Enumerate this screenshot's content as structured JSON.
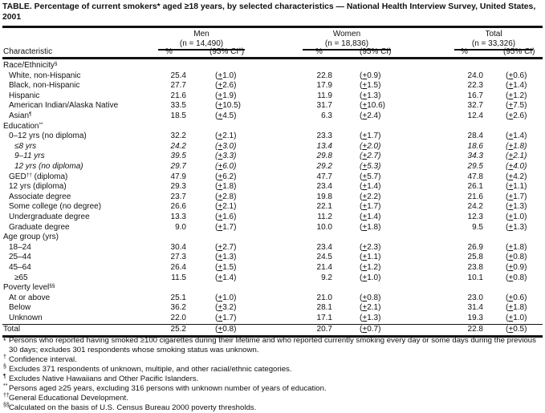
{
  "title": "TABLE. Percentage of current smokers* aged ≥18 years, by selected characteristics — National Health Interview Survey, United States, 2001",
  "columns": {
    "characteristic": "Characteristic",
    "groups": [
      {
        "name": "Men",
        "n": "(n = 14,490)",
        "pct": "%",
        "ci": "(95% CI",
        "ci_sup": "†",
        "ci_close": ")"
      },
      {
        "name": "Women",
        "n": "(n = 18,836)",
        "pct": "%",
        "ci": "(95% CI",
        "ci_sup": "",
        "ci_close": ")"
      },
      {
        "name": "Total",
        "n": "(n = 33,326)",
        "pct": "%",
        "ci": "(95% CI",
        "ci_sup": "",
        "ci_close": ")"
      }
    ]
  },
  "rows": [
    {
      "label": "Race/Ethnicity",
      "sup": "§",
      "type": "section"
    },
    {
      "label": "White, non-Hispanic",
      "indent": 1,
      "vals": [
        [
          "25.4",
          "1.0"
        ],
        [
          "22.8",
          "0.9"
        ],
        [
          "24.0",
          "0.6"
        ]
      ]
    },
    {
      "label": "Black, non-Hispanic",
      "indent": 1,
      "vals": [
        [
          "27.7",
          "2.6"
        ],
        [
          "17.9",
          "1.5"
        ],
        [
          "22.3",
          "1.4"
        ]
      ]
    },
    {
      "label": "Hispanic",
      "indent": 1,
      "vals": [
        [
          "21.6",
          "1.9"
        ],
        [
          "11.9",
          "1.3"
        ],
        [
          "16.7",
          "1.2"
        ]
      ]
    },
    {
      "label": "American Indian/Alaska Native",
      "indent": 1,
      "vals": [
        [
          "33.5",
          "10.5"
        ],
        [
          "31.7",
          "10.6"
        ],
        [
          "32.7",
          "7.5"
        ]
      ]
    },
    {
      "label": "Asian",
      "sup": "¶",
      "indent": 1,
      "vals": [
        [
          "18.5",
          "4.5"
        ],
        [
          "6.3",
          "2.4"
        ],
        [
          "12.4",
          "2.6"
        ]
      ]
    },
    {
      "label": "Education",
      "sup": "**",
      "type": "section"
    },
    {
      "label": "0–12 yrs (no diploma)",
      "indent": 1,
      "vals": [
        [
          "32.2",
          "2.1"
        ],
        [
          "23.3",
          "1.7"
        ],
        [
          "28.4",
          "1.4"
        ]
      ]
    },
    {
      "label": "≤8 yrs",
      "indent": 2,
      "italic": true,
      "vals": [
        [
          "24.2",
          "3.0"
        ],
        [
          "13.4",
          "2.0"
        ],
        [
          "18.6",
          "1.8"
        ]
      ]
    },
    {
      "label": "9–11 yrs",
      "indent": 2,
      "italic": true,
      "vals": [
        [
          "39.5",
          "3.3"
        ],
        [
          "29.8",
          "2.7"
        ],
        [
          "34.3",
          "2.1"
        ]
      ]
    },
    {
      "label": "12 yrs (no diploma)",
      "indent": 2,
      "italic": true,
      "vals": [
        [
          "29.7",
          "6.0"
        ],
        [
          "29.2",
          "5.3"
        ],
        [
          "29.5",
          "4.0"
        ]
      ]
    },
    {
      "label": "GED",
      "sup": "††",
      "label_after": " (diploma)",
      "indent": 1,
      "vals": [
        [
          "47.9",
          "6.2"
        ],
        [
          "47.7",
          "5.7"
        ],
        [
          "47.8",
          "4.2"
        ]
      ]
    },
    {
      "label": "12 yrs (diploma)",
      "indent": 1,
      "vals": [
        [
          "29.3",
          "1.8"
        ],
        [
          "23.4",
          "1.4"
        ],
        [
          "26.1",
          "1.1"
        ]
      ]
    },
    {
      "label": "Associate degree",
      "indent": 1,
      "vals": [
        [
          "23.7",
          "2.8"
        ],
        [
          "19.8",
          "2.2"
        ],
        [
          "21.6",
          "1.7"
        ]
      ]
    },
    {
      "label": "Some college (no degree)",
      "indent": 1,
      "vals": [
        [
          "26.6",
          "2.1"
        ],
        [
          "22.1",
          "1.7"
        ],
        [
          "24.2",
          "1.3"
        ]
      ]
    },
    {
      "label": "Undergraduate degree",
      "indent": 1,
      "vals": [
        [
          "13.3",
          "1.6"
        ],
        [
          "11.2",
          "1.4"
        ],
        [
          "12.3",
          "1.0"
        ]
      ]
    },
    {
      "label": "Graduate degree",
      "indent": 1,
      "vals": [
        [
          "9.0",
          "1.7"
        ],
        [
          "10.0",
          "1.8"
        ],
        [
          "9.5",
          "1.3"
        ]
      ]
    },
    {
      "label": "Age group (yrs)",
      "type": "section"
    },
    {
      "label": "18–24",
      "indent": 1,
      "vals": [
        [
          "30.4",
          "2.7"
        ],
        [
          "23.4",
          "2.3"
        ],
        [
          "26.9",
          "1.8"
        ]
      ]
    },
    {
      "label": "25–44",
      "indent": 1,
      "vals": [
        [
          "27.3",
          "1.3"
        ],
        [
          "24.5",
          "1.1"
        ],
        [
          "25.8",
          "0.8"
        ]
      ]
    },
    {
      "label": "45–64",
      "indent": 1,
      "vals": [
        [
          "26.4",
          "1.5"
        ],
        [
          "21.4",
          "1.2"
        ],
        [
          "23.8",
          "0.9"
        ]
      ]
    },
    {
      "label": "≥65",
      "indent": 2,
      "vals": [
        [
          "11.5",
          "1.4"
        ],
        [
          "9.2",
          "1.0"
        ],
        [
          "10.1",
          "0.8"
        ]
      ]
    },
    {
      "label": "Poverty level",
      "sup": "§§",
      "type": "section"
    },
    {
      "label": "At or above",
      "indent": 1,
      "vals": [
        [
          "25.1",
          "1.0"
        ],
        [
          "21.0",
          "0.8"
        ],
        [
          "23.0",
          "0.6"
        ]
      ]
    },
    {
      "label": "Below",
      "indent": 1,
      "vals": [
        [
          "36.2",
          "3.2"
        ],
        [
          "28.1",
          "2.1"
        ],
        [
          "31.4",
          "1.8"
        ]
      ]
    },
    {
      "label": "Unknown",
      "indent": 1,
      "vals": [
        [
          "22.0",
          "1.7"
        ],
        [
          "17.1",
          "1.3"
        ],
        [
          "19.3",
          "1.0"
        ]
      ]
    },
    {
      "label": "Total",
      "type": "total",
      "vals": [
        [
          "25.2",
          "0.8"
        ],
        [
          "20.7",
          "0.7"
        ],
        [
          "22.8",
          "0.5"
        ]
      ]
    }
  ],
  "footnotes": [
    {
      "mark": "*",
      "text": "Persons who reported having smoked ≥100 cigarettes during their lifetime and who reported currently smoking every day or some days during the previous 30 days; excludes 301 respondents whose smoking status was unknown."
    },
    {
      "mark": "†",
      "text": "Confidence interval."
    },
    {
      "mark": "§",
      "text": "Excludes 371 respondents of unknown, multiple, and other racial/ethnic categories."
    },
    {
      "mark": "¶",
      "text": "Excludes Native Hawaiians and Other Pacific Islanders."
    },
    {
      "mark": "**",
      "text": "Persons aged ≥25 years, excluding 316 persons with unknown number of years of education."
    },
    {
      "mark": "††",
      "text": "General Educational Development."
    },
    {
      "mark": "§§",
      "text": "Calculated on the basis of U.S. Census Bureau 2000 poverty thresholds."
    }
  ]
}
